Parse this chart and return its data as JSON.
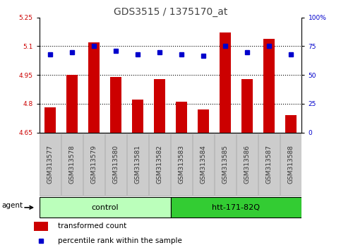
{
  "title": "GDS3515 / 1375170_at",
  "samples": [
    "GSM313577",
    "GSM313578",
    "GSM313579",
    "GSM313580",
    "GSM313581",
    "GSM313582",
    "GSM313583",
    "GSM313584",
    "GSM313585",
    "GSM313586",
    "GSM313587",
    "GSM313588"
  ],
  "bar_values": [
    4.78,
    4.95,
    5.12,
    4.94,
    4.82,
    4.93,
    4.81,
    4.77,
    5.17,
    4.93,
    5.14,
    4.74
  ],
  "dot_values": [
    68,
    70,
    75,
    71,
    68,
    70,
    68,
    67,
    75,
    70,
    75,
    68
  ],
  "ylim_left": [
    4.65,
    5.25
  ],
  "ylim_right": [
    0,
    100
  ],
  "yticks_left": [
    4.65,
    4.8,
    4.95,
    5.1,
    5.25
  ],
  "yticks_right": [
    0,
    25,
    50,
    75,
    100
  ],
  "ytick_labels_left": [
    "4.65",
    "4.8",
    "4.95",
    "5.1",
    "5.25"
  ],
  "ytick_labels_right": [
    "0",
    "25",
    "50",
    "75",
    "100%"
  ],
  "grid_values": [
    4.8,
    4.95,
    5.1
  ],
  "bar_color": "#cc0000",
  "dot_color": "#0000cc",
  "bar_width": 0.5,
  "groups": [
    {
      "label": "control",
      "start": 0,
      "end": 5,
      "color": "#bbffbb"
    },
    {
      "label": "htt-171-82Q",
      "start": 6,
      "end": 11,
      "color": "#33cc33"
    }
  ],
  "agent_label": "agent",
  "legend_bar_label": "transformed count",
  "legend_dot_label": "percentile rank within the sample",
  "title_fontsize": 10,
  "tick_fontsize": 6.5,
  "label_fontsize": 7.5,
  "group_fontsize": 8,
  "background_color": "#ffffff",
  "plot_bg_color": "#ffffff",
  "left_color": "#cc0000",
  "right_color": "#0000cc",
  "samplebox_color": "#cccccc",
  "samplebox_edge": "#aaaaaa"
}
